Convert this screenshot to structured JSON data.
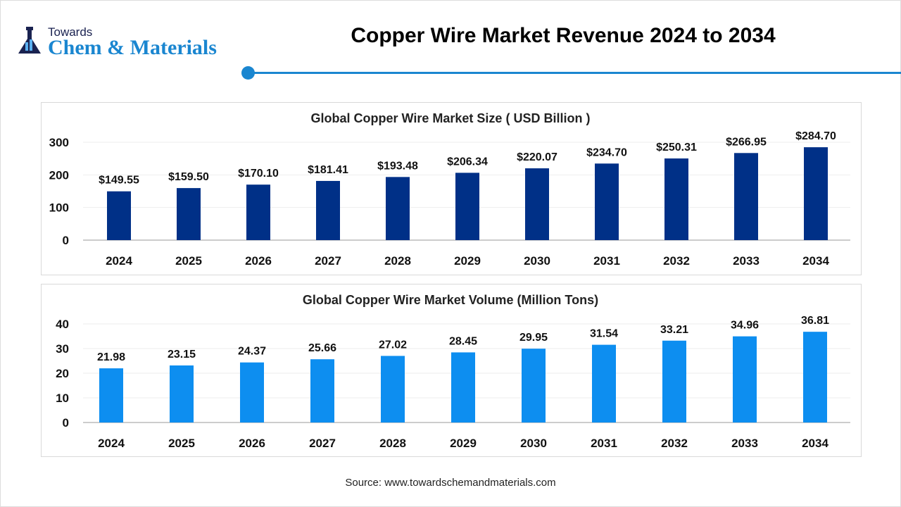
{
  "logo": {
    "line1": "Towards",
    "line2": "Chem & Materials"
  },
  "header": {
    "title": "Copper Wire Market Revenue 2024 to 2034"
  },
  "source": "Source: www.towardschemandmaterials.com",
  "chart_data": [
    {
      "type": "bar",
      "title": "Global Copper Wire Market Size ( USD Billion )",
      "categories": [
        "2024",
        "2025",
        "2026",
        "2027",
        "2028",
        "2029",
        "2030",
        "2031",
        "2032",
        "2033",
        "2034"
      ],
      "values": [
        149.55,
        159.5,
        170.1,
        181.41,
        193.48,
        206.34,
        220.07,
        234.7,
        250.31,
        266.95,
        284.7
      ],
      "labels": [
        "$149.55",
        "$159.50",
        "$170.10",
        "$181.41",
        "$193.48",
        "$206.34",
        "$220.07",
        "$234.70",
        "$250.31",
        "$266.95",
        "$284.70"
      ],
      "yticks": [
        0,
        100,
        200,
        300
      ],
      "ylim": [
        0,
        300
      ],
      "color": "#003087",
      "grid": true
    },
    {
      "type": "bar",
      "title": "Global Copper Wire Market Volume (Million Tons)",
      "categories": [
        "2024",
        "2025",
        "2026",
        "2027",
        "2028",
        "2029",
        "2030",
        "2031",
        "2032",
        "2033",
        "2034"
      ],
      "values": [
        21.98,
        23.15,
        24.37,
        25.66,
        27.02,
        28.45,
        29.95,
        31.54,
        33.21,
        34.96,
        36.81
      ],
      "labels": [
        "21.98",
        "23.15",
        "24.37",
        "25.66",
        "27.02",
        "28.45",
        "29.95",
        "31.54",
        "33.21",
        "34.96",
        "36.81"
      ],
      "yticks": [
        0,
        10,
        20,
        30,
        40
      ],
      "ylim": [
        0,
        40
      ],
      "color": "#0d8ef0",
      "grid": true
    }
  ]
}
